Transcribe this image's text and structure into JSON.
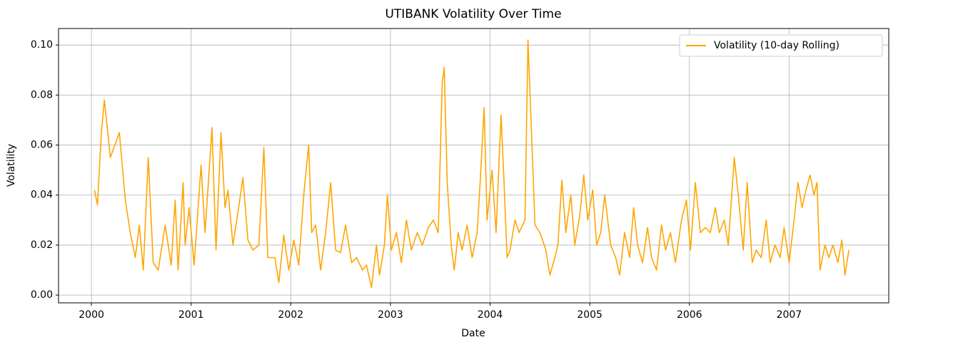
{
  "chart_data": {
    "type": "line",
    "title": "UTIBANK Volatility Over Time",
    "xlabel": "Date",
    "ylabel": "Volatility",
    "x": [
      2000.03,
      2000.06,
      2000.1,
      2000.13,
      2000.19,
      2000.28,
      2000.34,
      2000.39,
      2000.44,
      2000.48,
      2000.52,
      2000.57,
      2000.62,
      2000.67,
      2000.74,
      2000.8,
      2000.84,
      2000.87,
      2000.92,
      2000.94,
      2000.98,
      2001.03,
      2001.1,
      2001.14,
      2001.21,
      2001.25,
      2001.3,
      2001.34,
      2001.37,
      2001.42,
      2001.47,
      2001.52,
      2001.57,
      2001.62,
      2001.68,
      2001.73,
      2001.77,
      2001.84,
      2001.88,
      2001.93,
      2001.98,
      2002.03,
      2002.08,
      2002.13,
      2002.18,
      2002.21,
      2002.25,
      2002.3,
      2002.35,
      2002.4,
      2002.45,
      2002.5,
      2002.55,
      2002.61,
      2002.66,
      2002.72,
      2002.76,
      2002.81,
      2002.86,
      2002.89,
      2002.94,
      2002.97,
      2003.01,
      2003.06,
      2003.11,
      2003.16,
      2003.21,
      2003.27,
      2003.32,
      2003.38,
      2003.43,
      2003.48,
      2003.52,
      2003.54,
      2003.57,
      2003.61,
      2003.64,
      2003.68,
      2003.72,
      2003.77,
      2003.82,
      2003.87,
      2003.9,
      2003.94,
      2003.97,
      2004.02,
      2004.06,
      2004.11,
      2004.14,
      2004.17,
      2004.2,
      2004.25,
      2004.29,
      2004.35,
      2004.38,
      2004.42,
      2004.45,
      2004.5,
      2004.56,
      2004.6,
      2004.65,
      2004.68,
      2004.72,
      2004.76,
      2004.81,
      2004.85,
      2004.9,
      2004.94,
      2004.98,
      2005.03,
      2005.07,
      2005.11,
      2005.15,
      2005.21,
      2005.26,
      2005.3,
      2005.35,
      2005.4,
      2005.44,
      2005.48,
      2005.53,
      2005.58,
      2005.62,
      2005.67,
      2005.72,
      2005.76,
      2005.81,
      2005.86,
      2005.92,
      2005.97,
      2006.01,
      2006.06,
      2006.11,
      2006.16,
      2006.21,
      2006.26,
      2006.3,
      2006.35,
      2006.39,
      2006.45,
      2006.49,
      2006.54,
      2006.58,
      2006.63,
      2006.67,
      2006.72,
      2006.77,
      2006.81,
      2006.86,
      2006.91,
      2006.95,
      2007.0,
      2007.05,
      2007.09,
      2007.13,
      2007.17,
      2007.21,
      2007.25,
      2007.28,
      2007.31,
      2007.36,
      2007.4,
      2007.44,
      2007.49,
      2007.53,
      2007.56,
      2007.6
    ],
    "series": [
      {
        "name": "Volatility (10-day Rolling)",
        "color": "#ffa500",
        "values": [
          0.042,
          0.036,
          0.065,
          0.078,
          0.055,
          0.065,
          0.038,
          0.025,
          0.015,
          0.028,
          0.01,
          0.055,
          0.013,
          0.01,
          0.028,
          0.012,
          0.038,
          0.01,
          0.045,
          0.02,
          0.035,
          0.012,
          0.052,
          0.025,
          0.067,
          0.018,
          0.065,
          0.035,
          0.042,
          0.02,
          0.033,
          0.047,
          0.022,
          0.018,
          0.02,
          0.059,
          0.015,
          0.015,
          0.005,
          0.024,
          0.01,
          0.022,
          0.012,
          0.04,
          0.06,
          0.025,
          0.028,
          0.01,
          0.025,
          0.045,
          0.018,
          0.017,
          0.028,
          0.013,
          0.015,
          0.01,
          0.012,
          0.003,
          0.02,
          0.008,
          0.02,
          0.04,
          0.018,
          0.025,
          0.013,
          0.03,
          0.018,
          0.025,
          0.02,
          0.027,
          0.03,
          0.025,
          0.085,
          0.091,
          0.045,
          0.02,
          0.01,
          0.025,
          0.018,
          0.028,
          0.015,
          0.025,
          0.045,
          0.075,
          0.03,
          0.05,
          0.025,
          0.072,
          0.045,
          0.015,
          0.018,
          0.03,
          0.025,
          0.03,
          0.102,
          0.06,
          0.028,
          0.025,
          0.018,
          0.008,
          0.015,
          0.02,
          0.046,
          0.025,
          0.04,
          0.02,
          0.032,
          0.048,
          0.03,
          0.042,
          0.02,
          0.025,
          0.04,
          0.02,
          0.015,
          0.008,
          0.025,
          0.015,
          0.035,
          0.02,
          0.013,
          0.027,
          0.015,
          0.01,
          0.028,
          0.018,
          0.025,
          0.013,
          0.03,
          0.038,
          0.018,
          0.045,
          0.025,
          0.027,
          0.025,
          0.035,
          0.025,
          0.03,
          0.02,
          0.055,
          0.04,
          0.018,
          0.045,
          0.013,
          0.018,
          0.015,
          0.03,
          0.013,
          0.02,
          0.015,
          0.027,
          0.013,
          0.03,
          0.045,
          0.035,
          0.042,
          0.048,
          0.04,
          0.045,
          0.01,
          0.02,
          0.015,
          0.02,
          0.013,
          0.022,
          0.008,
          0.018
        ]
      }
    ],
    "xlim": [
      1999.67,
      2008.0
    ],
    "ylim": [
      -0.0031,
      0.1066
    ],
    "xticks": [
      2000,
      2001,
      2002,
      2003,
      2004,
      2005,
      2006,
      2007
    ],
    "yticks": [
      {
        "value": 0,
        "label": "0.00"
      },
      {
        "value": 0.02,
        "label": "0.02"
      },
      {
        "value": 0.04,
        "label": "0.04"
      },
      {
        "value": 0.06,
        "label": "0.06"
      },
      {
        "value": 0.08,
        "label": "0.08"
      },
      {
        "value": 0.1,
        "label": "0.10"
      }
    ],
    "grid": true,
    "legend": "upper right"
  }
}
